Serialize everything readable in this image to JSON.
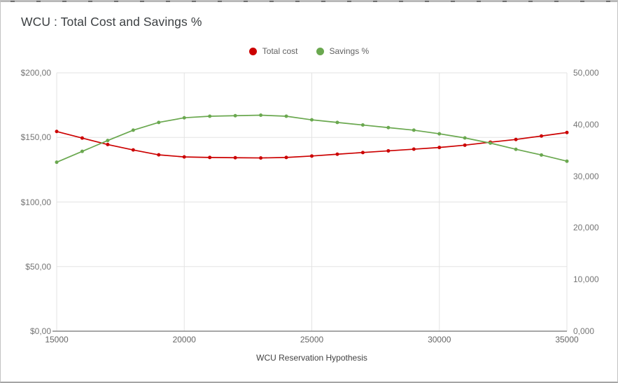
{
  "chart": {
    "title": "WCU : Total Cost and Savings %",
    "x_axis_title": "WCU Reservation Hypothesis",
    "legend": [
      {
        "label": "Total cost",
        "color": "#cc0000"
      },
      {
        "label": "Savings %",
        "color": "#6aa84f"
      }
    ],
    "colors": {
      "total_cost": "#cc0000",
      "savings": "#6aa84f",
      "gridline": "#e3e3e3",
      "axis_line": "#8a8a8a",
      "tick_text": "#757575"
    }
  },
  "chart_data": {
    "type": "line",
    "title": "WCU : Total Cost and Savings %",
    "xlabel": "WCU Reservation Hypothesis",
    "grid": true,
    "legend_position": "top",
    "x": [
      15000,
      16000,
      17000,
      18000,
      19000,
      20000,
      21000,
      22000,
      23000,
      24000,
      25000,
      26000,
      27000,
      28000,
      29000,
      30000,
      31000,
      32000,
      33000,
      34000,
      35000
    ],
    "x_tick_values": [
      15000,
      20000,
      25000,
      30000,
      35000
    ],
    "x_tick_labels": [
      "15000",
      "20000",
      "25000",
      "30000",
      "35000"
    ],
    "left_axis": {
      "range": [
        0,
        200
      ],
      "tick_values": [
        0,
        50,
        100,
        150,
        200
      ],
      "tick_labels": [
        "$0,00",
        "$50,00",
        "$100,00",
        "$150,00",
        "$200,00"
      ]
    },
    "right_axis": {
      "range": [
        0,
        50
      ],
      "tick_values": [
        0,
        10,
        20,
        30,
        40,
        50
      ],
      "tick_labels": [
        "0,000",
        "10,000",
        "20,000",
        "30,000",
        "40,000",
        "50,000"
      ]
    },
    "series": [
      {
        "name": "Total cost",
        "axis": "left",
        "color": "#cc0000",
        "values": [
          154.6,
          149.5,
          144.5,
          140.3,
          136.5,
          134.9,
          134.5,
          134.3,
          134.1,
          134.5,
          135.6,
          137.0,
          138.3,
          139.6,
          140.9,
          142.2,
          144.0,
          146.3,
          148.4,
          151.1,
          153.8
        ]
      },
      {
        "name": "Savings %",
        "axis": "right",
        "color": "#6aa84f",
        "values": [
          32.7,
          34.8,
          36.9,
          38.9,
          40.4,
          41.3,
          41.6,
          41.7,
          41.8,
          41.6,
          40.9,
          40.4,
          39.9,
          39.4,
          38.9,
          38.2,
          37.4,
          36.4,
          35.2,
          34.1,
          32.9
        ]
      }
    ]
  }
}
